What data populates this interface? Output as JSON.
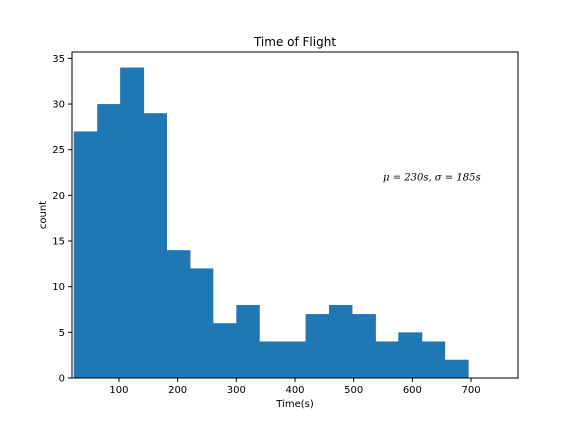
{
  "chart_data": {
    "type": "bar",
    "subtype": "histogram",
    "title": "Time of Flight",
    "xlabel": "Time(s)",
    "ylabel": "count",
    "xlim": [
      20,
      780
    ],
    "ylim": [
      0,
      35.7
    ],
    "xticks": [
      100,
      200,
      300,
      400,
      500,
      600,
      700
    ],
    "yticks": [
      0,
      5,
      10,
      15,
      20,
      25,
      30,
      35
    ],
    "bin_edges": [
      23,
      63,
      102,
      142,
      181,
      221,
      260,
      300,
      339,
      379,
      418,
      458,
      497,
      537,
      576,
      616,
      655,
      695
    ],
    "values": [
      27,
      30,
      34,
      29,
      14,
      12,
      6,
      8,
      4,
      4,
      7,
      8,
      7,
      4,
      5,
      4,
      2
    ],
    "bar_color": "#1f77b4",
    "grid": false,
    "annotation": {
      "text": "μ = 230s, σ = 185s",
      "x": 550,
      "y": 22
    }
  }
}
